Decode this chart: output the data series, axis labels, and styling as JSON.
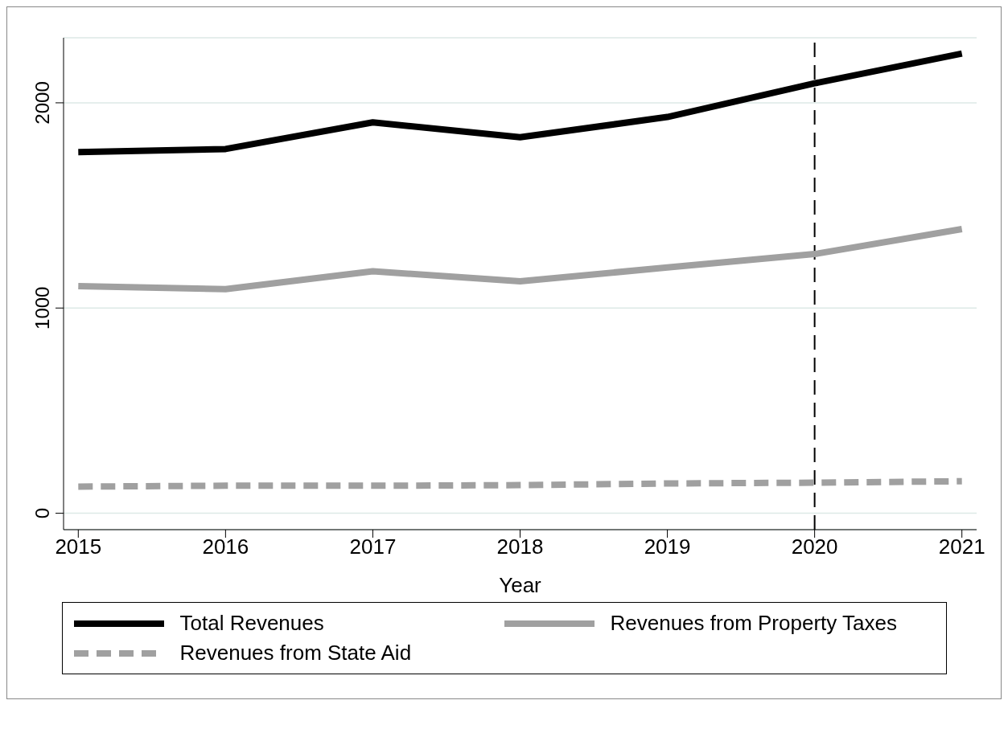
{
  "chart_data": {
    "type": "line",
    "xlabel": "Year",
    "x": [
      2015,
      2016,
      2017,
      2018,
      2019,
      2020,
      2021
    ],
    "series": [
      {
        "name": "Total Revenues",
        "color": "#000000",
        "line_style": "solid",
        "values": [
          1760,
          1775,
          1905,
          1832,
          1931,
          2095,
          2240
        ]
      },
      {
        "name": "Revenues from Property Taxes",
        "color": "#a0a0a0",
        "line_style": "solid",
        "values": [
          1107,
          1092,
          1179,
          1130,
          1198,
          1263,
          1385
        ]
      },
      {
        "name": "Revenues from State Aid",
        "color": "#a0a0a0",
        "line_style": "dashed",
        "values": [
          130,
          134,
          134,
          137,
          145,
          149,
          156
        ]
      }
    ],
    "xlim": [
      2014.9,
      2021.1
    ],
    "xticks": [
      2015,
      2016,
      2017,
      2018,
      2019,
      2020,
      2021
    ],
    "ylim": [
      -80,
      2317
    ],
    "yticks": [
      0,
      1000,
      2000
    ],
    "grid": "y",
    "legend": "bottom",
    "marker": "none",
    "ref_lines": [
      {
        "axis": "x",
        "value": 2020,
        "color": "#000000",
        "line_style": "dashed"
      }
    ]
  }
}
